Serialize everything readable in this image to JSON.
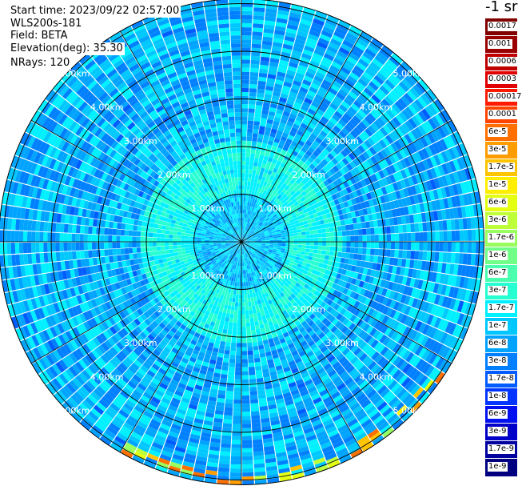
{
  "header": {
    "start_time": "Start time: 2023/09/22 02:57:00",
    "site": "WLS200s-181",
    "field": "Field: BETA",
    "elevation": "Elevation(deg): 35.30",
    "nrays": "NRays: 120"
  },
  "colorbar": {
    "units": "-1 sr",
    "levels": [
      {
        "label": "0.0017",
        "color": "#800000"
      },
      {
        "label": "0.001",
        "color": "#9a0000"
      },
      {
        "label": "0.0006",
        "color": "#c00000"
      },
      {
        "label": "0.0003",
        "color": "#e00000"
      },
      {
        "label": "0.00017",
        "color": "#ff1a00"
      },
      {
        "label": "0.0001",
        "color": "#ff4400"
      },
      {
        "label": "6e-5",
        "color": "#ff7000"
      },
      {
        "label": "3e-5",
        "color": "#ff9c00"
      },
      {
        "label": "1.7e-5",
        "color": "#ffc400"
      },
      {
        "label": "1e-5",
        "color": "#ffee00"
      },
      {
        "label": "6e-6",
        "color": "#e4ff12"
      },
      {
        "label": "3e-6",
        "color": "#bfff38"
      },
      {
        "label": "1.7e-6",
        "color": "#98ff5f"
      },
      {
        "label": "1e-6",
        "color": "#70ff87"
      },
      {
        "label": "6e-7",
        "color": "#4affad"
      },
      {
        "label": "3e-7",
        "color": "#26ffd2"
      },
      {
        "label": "1.7e-7",
        "color": "#00f0ff"
      },
      {
        "label": "1e-7",
        "color": "#00c8ff"
      },
      {
        "label": "6e-8",
        "color": "#00a4ff"
      },
      {
        "label": "3e-8",
        "color": "#0080ff"
      },
      {
        "label": "1.7e-8",
        "color": "#005cff"
      },
      {
        "label": "1e-8",
        "color": "#0034ff"
      },
      {
        "label": "6e-9",
        "color": "#0010f0"
      },
      {
        "label": "3e-9",
        "color": "#0000c8"
      },
      {
        "label": "1.7e-9",
        "color": "#0000a0"
      },
      {
        "label": "1e-9",
        "color": "#000080"
      }
    ]
  },
  "chart_data": {
    "type": "heatmap",
    "projection": "PPI polar",
    "range_rings_km": [
      1,
      2,
      3,
      4,
      5
    ],
    "ring_labels": [
      "1.00km",
      "2.00km",
      "3.00km",
      "4.00km",
      "5.00km"
    ],
    "max_range_km": 5.1,
    "azimuth_spokes_deg": [
      0,
      30,
      60,
      90,
      120,
      150,
      180,
      210,
      240,
      270,
      300,
      330
    ],
    "nrays": 120,
    "value_pattern": [
      {
        "range_km": [
          0,
          1.0
        ],
        "dominant_level": "6e-8 to 1.7e-7"
      },
      {
        "range_km": [
          1.0,
          2.1
        ],
        "dominant_level": "1.7e-7 to 3e-7"
      },
      {
        "range_km": [
          2.1,
          5.1
        ],
        "dominant_level": "3e-8 to 1.7e-7"
      },
      {
        "range_km": [
          4.8,
          5.1
        ],
        "dominant_level": "1.7e-6 to 6e-5",
        "sector": "south / south-east edge"
      }
    ]
  }
}
